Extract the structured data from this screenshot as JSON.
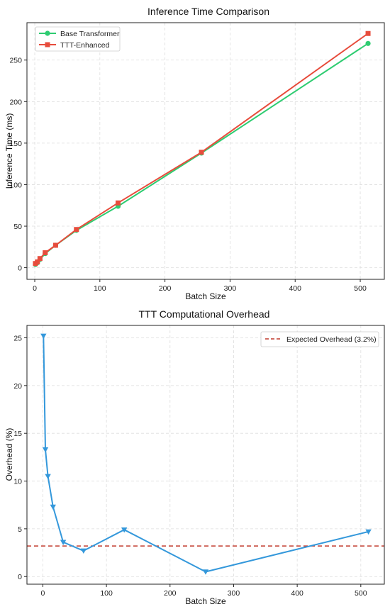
{
  "chart_data": [
    {
      "type": "line",
      "title": "Inference Time Comparison",
      "xlabel": "Batch Size",
      "ylabel": "Inference Time (ms)",
      "xlim": [
        -12,
        537
      ],
      "ylim": [
        -14,
        295
      ],
      "xticks": [
        0,
        100,
        200,
        300,
        400,
        500
      ],
      "yticks": [
        0,
        50,
        100,
        150,
        200,
        250
      ],
      "grid": true,
      "legend_position": "top-left",
      "series": [
        {
          "name": "Base Transformer",
          "color": "#2ecc71",
          "marker": "circle",
          "x": [
            1,
            4,
            8,
            16,
            32,
            64,
            128,
            256,
            512
          ],
          "y": [
            4,
            6,
            10,
            17,
            27,
            45,
            74,
            138,
            270
          ]
        },
        {
          "name": "TTT-Enhanced",
          "color": "#e74c3c",
          "marker": "square",
          "x": [
            1,
            4,
            8,
            16,
            32,
            64,
            128,
            256,
            512
          ],
          "y": [
            5,
            7,
            11,
            18,
            27,
            46,
            78,
            139,
            282
          ]
        }
      ]
    },
    {
      "type": "line",
      "title": "TTT Computational Overhead",
      "xlabel": "Batch Size",
      "ylabel": "Overhead (%)",
      "xlim": [
        -25,
        537
      ],
      "ylim": [
        -0.8,
        26.3
      ],
      "xticks": [
        0,
        100,
        200,
        300,
        400,
        500
      ],
      "yticks": [
        0,
        5,
        10,
        15,
        20,
        25
      ],
      "grid": true,
      "legend_position": "top-right",
      "series": [
        {
          "name": "",
          "color": "#3498db",
          "marker": "triangle-down",
          "x": [
            1,
            4,
            8,
            16,
            32,
            64,
            128,
            256,
            512
          ],
          "y": [
            25.2,
            13.3,
            10.5,
            7.3,
            3.6,
            2.7,
            4.9,
            0.5,
            4.7
          ]
        }
      ],
      "reference_line": {
        "name": "Expected Overhead (3.2%)",
        "value": 3.2,
        "color": "#c0392b",
        "style": "dashed"
      }
    }
  ]
}
